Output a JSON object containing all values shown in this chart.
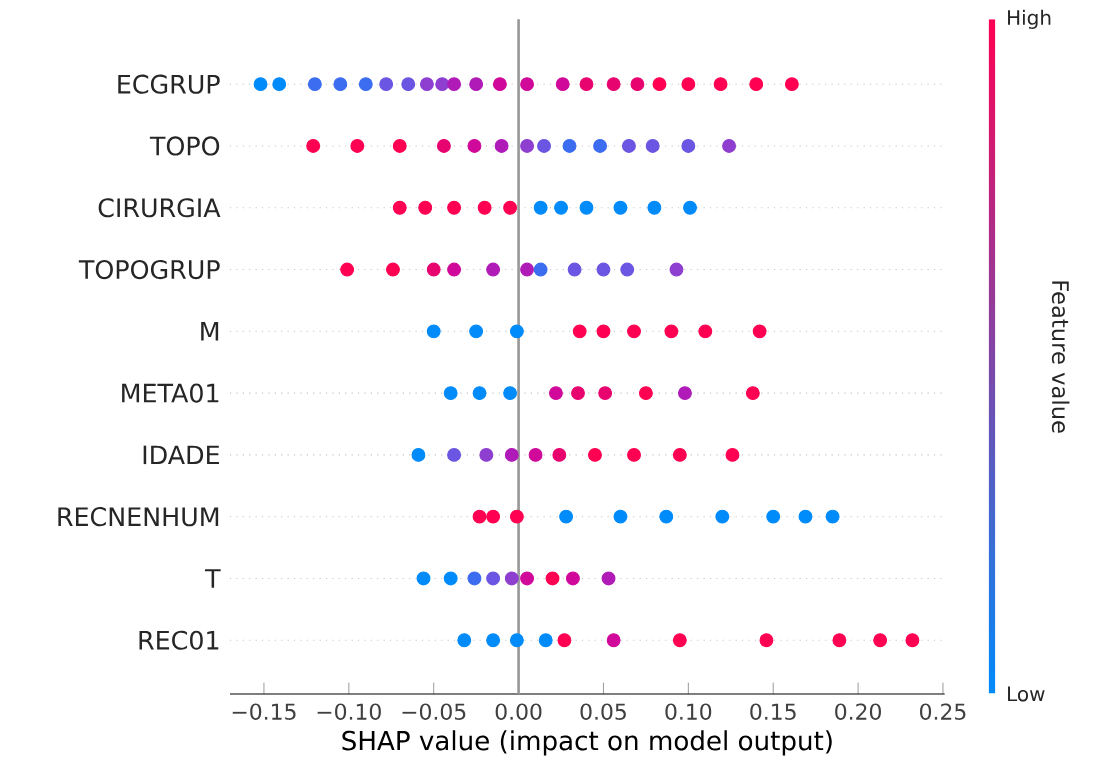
{
  "chart_data": {
    "type": "scatter",
    "orientation": "horizontal",
    "xlabel": "SHAP value (impact on model output)",
    "clabel": "Feature value",
    "categories": [
      "ECGRUP",
      "TOPO",
      "CIRURGIA",
      "TOPOGRUP",
      "M",
      "META01",
      "IDADE",
      "RECNENHUM",
      "T",
      "REC01"
    ],
    "series": [
      {
        "x": [
          "ECGRUP",
          "ECGRUP",
          "ECGRUP",
          "ECGRUP",
          "ECGRUP",
          "ECGRUP",
          "ECGRUP",
          "ECGRUP",
          "ECGRUP",
          "ECGRUP",
          "ECGRUP",
          "ECGRUP",
          "ECGRUP",
          "ECGRUP",
          "ECGRUP",
          "ECGRUP",
          "ECGRUP",
          "ECGRUP",
          "ECGRUP",
          "ECGRUP",
          "ECGRUP",
          "ECGRUP"
        ],
        "values": [
          -0.152,
          -0.141,
          -0.12,
          -0.105,
          -0.09,
          -0.078,
          -0.065,
          -0.054,
          -0.045,
          -0.038,
          -0.025,
          -0.011,
          0.005,
          0.026,
          0.04,
          0.056,
          0.07,
          0.083,
          0.1,
          0.119,
          0.14,
          0.161
        ],
        "colors": [
          "#008bfb",
          "#008bfb",
          "#3c6df0",
          "#3c6df0",
          "#3c6df0",
          "#6a56e2",
          "#6a56e2",
          "#8e3fd0",
          "#8e3fd0",
          "#b01bb8",
          "#b01bb8",
          "#d0099a",
          "#d0099a",
          "#d0099a",
          "#e8046f",
          "#e8046f",
          "#e8046f",
          "#ff0052",
          "#ff0052",
          "#ff0052",
          "#ff0052",
          "#ff0052"
        ]
      },
      {
        "x": [
          "TOPO",
          "TOPO",
          "TOPO",
          "TOPO",
          "TOPO",
          "TOPO",
          "TOPO",
          "TOPO",
          "TOPO",
          "TOPO",
          "TOPO",
          "TOPO",
          "TOPO",
          "TOPO"
        ],
        "values": [
          -0.121,
          -0.095,
          -0.07,
          -0.044,
          -0.026,
          -0.01,
          0.005,
          0.015,
          0.03,
          0.048,
          0.065,
          0.079,
          0.1,
          0.124
        ],
        "colors": [
          "#ff0052",
          "#ff0052",
          "#ff0052",
          "#e8046f",
          "#d0099a",
          "#b01bb8",
          "#8e3fd0",
          "#6a56e2",
          "#3c6df0",
          "#3c6df0",
          "#6a56e2",
          "#6a56e2",
          "#6a56e2",
          "#8e3fd0"
        ]
      },
      {
        "x": [
          "CIRURGIA",
          "CIRURGIA",
          "CIRURGIA",
          "CIRURGIA",
          "CIRURGIA",
          "CIRURGIA",
          "CIRURGIA",
          "CIRURGIA",
          "CIRURGIA",
          "CIRURGIA",
          "CIRURGIA"
        ],
        "values": [
          -0.07,
          -0.055,
          -0.038,
          -0.02,
          -0.005,
          0.013,
          0.025,
          0.04,
          0.06,
          0.08,
          0.101
        ],
        "colors": [
          "#ff0052",
          "#ff0052",
          "#ff0052",
          "#ff0052",
          "#ff0052",
          "#008bfb",
          "#008bfb",
          "#008bfb",
          "#008bfb",
          "#008bfb",
          "#008bfb"
        ]
      },
      {
        "x": [
          "TOPOGRUP",
          "TOPOGRUP",
          "TOPOGRUP",
          "TOPOGRUP",
          "TOPOGRUP",
          "TOPOGRUP",
          "TOPOGRUP",
          "TOPOGRUP",
          "TOPOGRUP",
          "TOPOGRUP",
          "TOPOGRUP"
        ],
        "values": [
          -0.101,
          -0.074,
          -0.05,
          -0.038,
          -0.015,
          0.005,
          0.013,
          0.033,
          0.05,
          0.064,
          0.093
        ],
        "colors": [
          "#ff0052",
          "#ff0052",
          "#e8046f",
          "#d0099a",
          "#b01bb8",
          "#b01bb8",
          "#3c6df0",
          "#6a56e2",
          "#6a56e2",
          "#6a56e2",
          "#8e3fd0"
        ]
      },
      {
        "x": [
          "M",
          "M",
          "M",
          "M",
          "M",
          "M",
          "M",
          "M",
          "M"
        ],
        "values": [
          -0.05,
          -0.025,
          -0.001,
          0.036,
          0.05,
          0.068,
          0.09,
          0.11,
          0.142
        ],
        "colors": [
          "#008bfb",
          "#008bfb",
          "#008bfb",
          "#ff0052",
          "#ff0052",
          "#ff0052",
          "#ff0052",
          "#ff0052",
          "#ff0052"
        ]
      },
      {
        "x": [
          "META01",
          "META01",
          "META01",
          "META01",
          "META01",
          "META01",
          "META01",
          "META01",
          "META01"
        ],
        "values": [
          -0.04,
          -0.023,
          -0.005,
          0.022,
          0.035,
          0.051,
          0.075,
          0.098,
          0.138
        ],
        "colors": [
          "#008bfb",
          "#008bfb",
          "#008bfb",
          "#d0099a",
          "#e8046f",
          "#e8046f",
          "#ff0052",
          "#b01bb8",
          "#ff0052"
        ]
      },
      {
        "x": [
          "IDADE",
          "IDADE",
          "IDADE",
          "IDADE",
          "IDADE",
          "IDADE",
          "IDADE",
          "IDADE",
          "IDADE",
          "IDADE"
        ],
        "values": [
          -0.059,
          -0.038,
          -0.019,
          -0.004,
          0.01,
          0.024,
          0.045,
          0.068,
          0.095,
          0.126
        ],
        "colors": [
          "#008bfb",
          "#6a56e2",
          "#8e3fd0",
          "#b01bb8",
          "#d0099a",
          "#e8046f",
          "#ff0052",
          "#ff0052",
          "#ff0052",
          "#ff0052"
        ]
      },
      {
        "x": [
          "RECNENHUM",
          "RECNENHUM",
          "RECNENHUM",
          "RECNENHUM",
          "RECNENHUM",
          "RECNENHUM",
          "RECNENHUM",
          "RECNENHUM",
          "RECNENHUM",
          "RECNENHUM"
        ],
        "values": [
          -0.023,
          -0.015,
          -0.001,
          0.028,
          0.06,
          0.087,
          0.12,
          0.15,
          0.169,
          0.185
        ],
        "colors": [
          "#ff0052",
          "#ff0052",
          "#ff0052",
          "#008bfb",
          "#008bfb",
          "#008bfb",
          "#008bfb",
          "#008bfb",
          "#008bfb",
          "#008bfb"
        ]
      },
      {
        "x": [
          "T",
          "T",
          "T",
          "T",
          "T",
          "T",
          "T",
          "T",
          "T"
        ],
        "values": [
          -0.056,
          -0.04,
          -0.026,
          -0.015,
          -0.004,
          0.005,
          0.02,
          0.032,
          0.053
        ],
        "colors": [
          "#008bfb",
          "#008bfb",
          "#3c6df0",
          "#6a56e2",
          "#8e3fd0",
          "#d0099a",
          "#ff0052",
          "#d0099a",
          "#b01bb8"
        ]
      },
      {
        "x": [
          "REC01",
          "REC01",
          "REC01",
          "REC01",
          "REC01",
          "REC01",
          "REC01",
          "REC01",
          "REC01",
          "REC01",
          "REC01"
        ],
        "values": [
          -0.032,
          -0.015,
          -0.001,
          0.016,
          0.027,
          0.056,
          0.095,
          0.146,
          0.189,
          0.213,
          0.232
        ],
        "colors": [
          "#008bfb",
          "#008bfb",
          "#008bfb",
          "#008bfb",
          "#ff0052",
          "#d0099a",
          "#ff0052",
          "#ff0052",
          "#ff0052",
          "#ff0052",
          "#ff0052"
        ]
      }
    ],
    "xlim": [
      -0.17,
      0.251
    ],
    "xticks": [
      {
        "value": -0.15,
        "label": "−0.15"
      },
      {
        "value": -0.1,
        "label": "−0.10"
      },
      {
        "value": -0.05,
        "label": "−0.05"
      },
      {
        "value": 0,
        "label": "0.00"
      },
      {
        "value": 0.05,
        "label": "0.05"
      },
      {
        "value": 0.1,
        "label": "0.10"
      },
      {
        "value": 0.15,
        "label": "0.15"
      },
      {
        "value": 0.2,
        "label": "0.20"
      },
      {
        "value": 0.25,
        "label": "0.25"
      }
    ],
    "annotations": [
      "High",
      "Low"
    ],
    "ref_lines": [
      {
        "axis": "x",
        "value": 0,
        "color": "#999999"
      }
    ],
    "grid": "y",
    "marker": "circle"
  }
}
